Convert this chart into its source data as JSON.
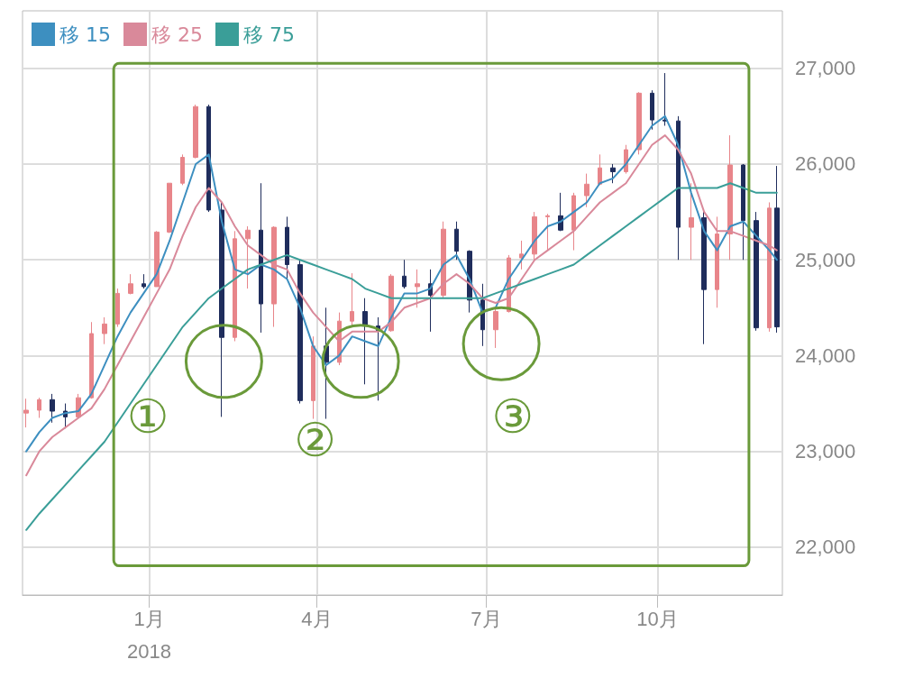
{
  "chart_data": {
    "type": "candlestick",
    "legend": "top left",
    "grid": true,
    "x": [
      "2017-10-27",
      "2017-11-03",
      "2017-11-10",
      "2017-11-17",
      "2017-11-24",
      "2017-12-01",
      "2017-12-08",
      "2017-12-15",
      "2017-12-22",
      "2017-12-29",
      "2018-01-05",
      "2018-01-12",
      "2018-01-19",
      "2018-01-26",
      "2018-02-02",
      "2018-02-09",
      "2018-02-16",
      "2018-02-23",
      "2018-03-02",
      "2018-03-09",
      "2018-03-16",
      "2018-03-23",
      "2018-03-30",
      "2018-04-06",
      "2018-04-13",
      "2018-04-20",
      "2018-04-27",
      "2018-05-04",
      "2018-05-11",
      "2018-05-18",
      "2018-05-25",
      "2018-06-01",
      "2018-06-08",
      "2018-06-15",
      "2018-06-22",
      "2018-06-29",
      "2018-07-06",
      "2018-07-13",
      "2018-07-20",
      "2018-07-27",
      "2018-08-03",
      "2018-08-10",
      "2018-08-17",
      "2018-08-24",
      "2018-08-31",
      "2018-09-07",
      "2018-09-14",
      "2018-09-21",
      "2018-09-28",
      "2018-10-05",
      "2018-10-12",
      "2018-10-19",
      "2018-10-26",
      "2018-11-02",
      "2018-11-09",
      "2018-11-16",
      "2018-11-23",
      "2018-11-30",
      "2018-12-04"
    ],
    "ohlc": [
      [
        23400,
        23550,
        23250,
        23430
      ],
      [
        23430,
        23560,
        23350,
        23540
      ],
      [
        23540,
        23600,
        23300,
        23420
      ],
      [
        23420,
        23500,
        23240,
        23360
      ],
      [
        23360,
        23600,
        23350,
        23560
      ],
      [
        23560,
        24350,
        23550,
        24230
      ],
      [
        24230,
        24400,
        24120,
        24330
      ],
      [
        24330,
        24700,
        24300,
        24650
      ],
      [
        24650,
        24850,
        24640,
        24750
      ],
      [
        24750,
        24850,
        24700,
        24720
      ],
      [
        24720,
        25300,
        24720,
        25290
      ],
      [
        25290,
        25800,
        25280,
        25800
      ],
      [
        25800,
        26100,
        25780,
        26070
      ],
      [
        26070,
        26620,
        26060,
        26600
      ],
      [
        26600,
        26620,
        25500,
        25520
      ],
      [
        25520,
        25600,
        23360,
        24190
      ],
      [
        24190,
        25300,
        24150,
        25220
      ],
      [
        25220,
        25350,
        24700,
        25310
      ],
      [
        25310,
        25800,
        24240,
        24540
      ],
      [
        24540,
        25350,
        24300,
        25340
      ],
      [
        25340,
        25450,
        24800,
        24950
      ],
      [
        24950,
        25000,
        23500,
        23530
      ],
      [
        23530,
        24200,
        23340,
        24100
      ],
      [
        24100,
        24500,
        23340,
        23930
      ],
      [
        23930,
        24450,
        23900,
        24360
      ],
      [
        24360,
        24860,
        24300,
        24460
      ],
      [
        24460,
        24600,
        23700,
        24310
      ],
      [
        24310,
        24400,
        23530,
        24260
      ],
      [
        24260,
        24850,
        24250,
        24830
      ],
      [
        24830,
        25000,
        24700,
        24720
      ],
      [
        24720,
        24900,
        24500,
        24750
      ],
      [
        24750,
        24900,
        24250,
        24630
      ],
      [
        24630,
        25400,
        24600,
        25320
      ],
      [
        25320,
        25400,
        25000,
        25090
      ],
      [
        25090,
        25100,
        24450,
        24580
      ],
      [
        24580,
        24750,
        24100,
        24270
      ],
      [
        24270,
        24500,
        24080,
        24460
      ],
      [
        24460,
        25050,
        24450,
        25020
      ],
      [
        25020,
        25200,
        24900,
        25060
      ],
      [
        25060,
        25500,
        25000,
        25450
      ],
      [
        25450,
        25480,
        25100,
        25460
      ],
      [
        25460,
        25700,
        25300,
        25310
      ],
      [
        25310,
        25700,
        25100,
        25670
      ],
      [
        25670,
        25900,
        25550,
        25790
      ],
      [
        25790,
        26100,
        25780,
        25960
      ],
      [
        25960,
        26000,
        25800,
        25920
      ],
      [
        25920,
        26200,
        25900,
        26150
      ],
      [
        26150,
        26750,
        26100,
        26740
      ],
      [
        26740,
        26770,
        26360,
        26460
      ],
      [
        26460,
        26950,
        26400,
        26450
      ],
      [
        26450,
        26500,
        25000,
        25340
      ],
      [
        25340,
        25800,
        25000,
        25440
      ],
      [
        25440,
        25500,
        24120,
        24690
      ],
      [
        24690,
        25450,
        24500,
        25270
      ],
      [
        25270,
        26300,
        25000,
        25990
      ],
      [
        25990,
        26000,
        25000,
        25410
      ],
      [
        25410,
        25500,
        24260,
        24290
      ],
      [
        24290,
        25600,
        24250,
        25540
      ],
      [
        25540,
        25980,
        24240,
        24300
      ]
    ],
    "series": [
      {
        "name": "移 15",
        "type": "line",
        "color": "#3d8fc0",
        "values": [
          23000,
          23200,
          23350,
          23400,
          23420,
          23600,
          23900,
          24200,
          24450,
          24650,
          24850,
          25200,
          25600,
          26000,
          26100,
          25400,
          24900,
          24850,
          24950,
          24900,
          24800,
          24500,
          24100,
          23900,
          24000,
          24200,
          24150,
          24100,
          24400,
          24650,
          24650,
          24700,
          24950,
          25050,
          24800,
          24450,
          24500,
          24800,
          25000,
          25200,
          25350,
          25400,
          25500,
          25600,
          25800,
          25850,
          26000,
          26200,
          26400,
          26500,
          26200,
          25700,
          25300,
          25100,
          25350,
          25400,
          25250,
          25100,
          25000
        ]
      },
      {
        "name": "移 25",
        "type": "line",
        "color": "#d9899a",
        "values": [
          22750,
          23000,
          23150,
          23250,
          23350,
          23450,
          23650,
          23900,
          24150,
          24400,
          24650,
          24900,
          25250,
          25550,
          25750,
          25600,
          25350,
          25150,
          25050,
          24950,
          24900,
          24650,
          24450,
          24300,
          24150,
          24250,
          24250,
          24250,
          24350,
          24500,
          24550,
          24600,
          24750,
          24850,
          24750,
          24600,
          24550,
          24600,
          24800,
          25000,
          25100,
          25200,
          25300,
          25450,
          25600,
          25700,
          25800,
          26000,
          26200,
          26300,
          26150,
          25900,
          25500,
          25300,
          25300,
          25250,
          25200,
          25150,
          25100
        ]
      },
      {
        "name": "移 75",
        "type": "line",
        "color": "#3a9e98",
        "values": [
          22180,
          22350,
          22500,
          22650,
          22800,
          22950,
          23100,
          23300,
          23500,
          23700,
          23900,
          24100,
          24300,
          24450,
          24600,
          24700,
          24800,
          24900,
          24950,
          25000,
          25050,
          25000,
          24950,
          24900,
          24850,
          24800,
          24700,
          24650,
          24600,
          24600,
          24600,
          24600,
          24600,
          24600,
          24600,
          24600,
          24650,
          24700,
          24750,
          24800,
          24850,
          24900,
          24950,
          25050,
          25150,
          25250,
          25350,
          25450,
          25550,
          25650,
          25750,
          25750,
          25750,
          25750,
          25800,
          25750,
          25700,
          25700,
          25700
        ]
      }
    ],
    "xlim": [
      "2017-10-25",
      "2018-12-07"
    ],
    "xticks": [
      {
        "value": "2018-01-01",
        "label": "1月\n2018"
      },
      {
        "value": "2018-04-01",
        "label": "4月"
      },
      {
        "value": "2018-07-01",
        "label": "7月"
      },
      {
        "value": "2018-10-01",
        "label": "10月"
      }
    ],
    "ylim": [
      21500,
      27600
    ],
    "yticks": [
      {
        "value": 22000,
        "label": "22,000"
      },
      {
        "value": 23000,
        "label": "23,000"
      },
      {
        "value": 24000,
        "label": "24,000"
      },
      {
        "value": 25000,
        "label": "25,000"
      },
      {
        "value": 26000,
        "label": "26,000"
      },
      {
        "value": 27000,
        "label": "27,000"
      }
    ],
    "annotations": [
      "①",
      "②",
      "③"
    ]
  }
}
